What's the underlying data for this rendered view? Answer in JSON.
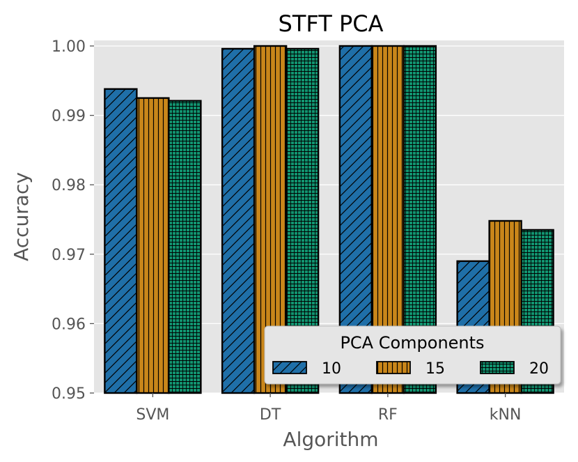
{
  "chart_data": {
    "type": "bar",
    "title": "STFT PCA",
    "xlabel": "Algorithm",
    "ylabel": "Accuracy",
    "categories": [
      "SVM",
      "DT",
      "RF",
      "kNN"
    ],
    "ylim": [
      0.95,
      1.0
    ],
    "yticks": [
      "0.95",
      "0.96",
      "0.97",
      "0.98",
      "0.99",
      "1.00"
    ],
    "grid": true,
    "series": [
      {
        "name": "10",
        "color": "#1f6fa8",
        "hatch": "diagonal",
        "values": [
          0.9938,
          0.9996,
          1.0,
          0.969
        ]
      },
      {
        "name": "15",
        "color": "#c9861a",
        "hatch": "vertical",
        "values": [
          0.9925,
          1.0,
          1.0,
          0.9748
        ]
      },
      {
        "name": "20",
        "color": "#119470",
        "hatch": "grid",
        "values": [
          0.9921,
          0.9996,
          1.0,
          0.9735
        ]
      }
    ],
    "legend": {
      "title": "PCA Components",
      "placement": "lower-right"
    }
  },
  "colors": {
    "plot_background": "#e5e5e5",
    "grid": "#ffffff",
    "bar_edge": "#000000"
  }
}
